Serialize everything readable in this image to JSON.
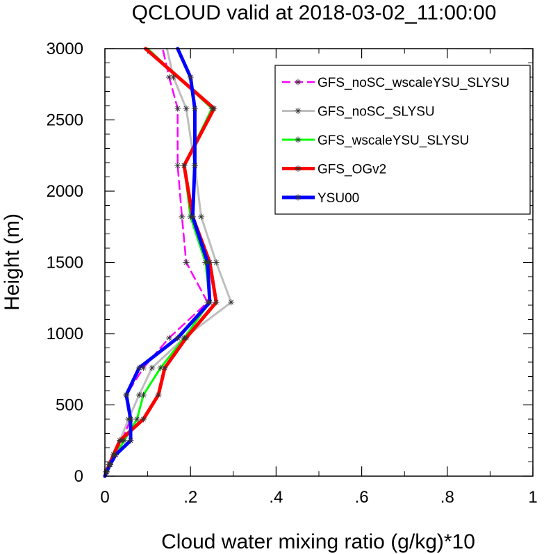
{
  "chart_data": {
    "type": "line",
    "title": "QCLOUD valid at 2018-03-02_11:00:00",
    "xlabel": "Cloud water mixing ratio (g/kg)*10",
    "ylabel": "Height (m)",
    "xlim": [
      0,
      1
    ],
    "ylim": [
      0,
      3000
    ],
    "x_ticks": [
      {
        "value": 0,
        "label": "0"
      },
      {
        "value": 0.2,
        "label": ".2"
      },
      {
        "value": 0.4,
        "label": ".4"
      },
      {
        "value": 0.6,
        "label": ".6"
      },
      {
        "value": 0.8,
        "label": ".8"
      },
      {
        "value": 1,
        "label": "1"
      }
    ],
    "y_ticks": [
      {
        "value": 0,
        "label": "0"
      },
      {
        "value": 500,
        "label": "500"
      },
      {
        "value": 1000,
        "label": "1000"
      },
      {
        "value": 1500,
        "label": "1500"
      },
      {
        "value": 2000,
        "label": "2000"
      },
      {
        "value": 2500,
        "label": "2500"
      },
      {
        "value": 3000,
        "label": "3000"
      }
    ],
    "grid": false,
    "legend_position": "top-right",
    "series": [
      {
        "name": "GFS_noSC_wscaleYSU_SLYSU",
        "color": "#ff00ff",
        "line_style": "dashed",
        "marker": "asterisk",
        "points": [
          [
            0,
            0
          ],
          [
            0.003,
            30
          ],
          [
            0.01,
            80
          ],
          [
            0.02,
            150
          ],
          [
            0.04,
            250
          ],
          [
            0.06,
            400
          ],
          [
            0.05,
            570
          ],
          [
            0.09,
            760
          ],
          [
            0.15,
            970
          ],
          [
            0.24,
            1220
          ],
          [
            0.19,
            1500
          ],
          [
            0.18,
            1820
          ],
          [
            0.17,
            2180
          ],
          [
            0.17,
            2580
          ],
          [
            0.15,
            2800
          ],
          [
            0.135,
            3000
          ]
        ]
      },
      {
        "name": "GFS_noSC_SLYSU",
        "color": "#bebebe",
        "line_style": "solid",
        "marker": "asterisk",
        "points": [
          [
            0,
            0
          ],
          [
            0.004,
            30
          ],
          [
            0.012,
            80
          ],
          [
            0.025,
            150
          ],
          [
            0.035,
            250
          ],
          [
            0.055,
            400
          ],
          [
            0.08,
            570
          ],
          [
            0.11,
            760
          ],
          [
            0.185,
            970
          ],
          [
            0.295,
            1220
          ],
          [
            0.26,
            1500
          ],
          [
            0.225,
            1820
          ],
          [
            0.21,
            2180
          ],
          [
            0.19,
            2580
          ],
          [
            0.16,
            2800
          ],
          [
            0.145,
            3000
          ]
        ]
      },
      {
        "name": "GFS_wscaleYSU_SLYSU",
        "color": "#00ff00",
        "line_style": "solid",
        "marker": "asterisk",
        "points": [
          [
            0,
            0
          ],
          [
            0.004,
            30
          ],
          [
            0.012,
            80
          ],
          [
            0.025,
            150
          ],
          [
            0.045,
            250
          ],
          [
            0.075,
            400
          ],
          [
            0.09,
            570
          ],
          [
            0.13,
            760
          ],
          [
            0.185,
            970
          ],
          [
            0.245,
            1220
          ],
          [
            0.235,
            1500
          ],
          [
            0.2,
            1820
          ],
          [
            0.185,
            2180
          ],
          [
            0.25,
            2580
          ],
          [
            0.1,
            3000
          ]
        ]
      },
      {
        "name": "GFS_OGv2",
        "color": "#ff0000",
        "line_style": "solid",
        "marker": "asterisk",
        "points": [
          [
            0,
            0
          ],
          [
            0.003,
            30
          ],
          [
            0.01,
            80
          ],
          [
            0.02,
            150
          ],
          [
            0.035,
            250
          ],
          [
            0.09,
            400
          ],
          [
            0.125,
            570
          ],
          [
            0.14,
            760
          ],
          [
            0.19,
            970
          ],
          [
            0.26,
            1220
          ],
          [
            0.245,
            1500
          ],
          [
            0.205,
            1820
          ],
          [
            0.185,
            2180
          ],
          [
            0.255,
            2580
          ],
          [
            0.095,
            3000
          ]
        ]
      },
      {
        "name": "YSU00",
        "color": "#0000ff",
        "line_style": "solid",
        "marker": "asterisk",
        "points": [
          [
            0,
            0
          ],
          [
            0.004,
            30
          ],
          [
            0.012,
            80
          ],
          [
            0.025,
            150
          ],
          [
            0.06,
            250
          ],
          [
            0.06,
            400
          ],
          [
            0.05,
            570
          ],
          [
            0.08,
            760
          ],
          [
            0.17,
            970
          ],
          [
            0.245,
            1220
          ],
          [
            0.24,
            1500
          ],
          [
            0.205,
            1820
          ],
          [
            0.21,
            2180
          ],
          [
            0.21,
            2580
          ],
          [
            0.2,
            2800
          ],
          [
            0.17,
            3000
          ]
        ]
      }
    ]
  }
}
